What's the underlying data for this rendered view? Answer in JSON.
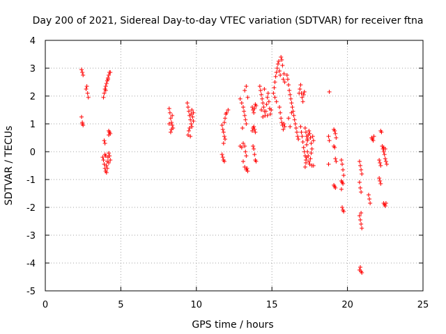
{
  "chart_data": {
    "type": "scatter",
    "title": "Day 200 of 2021, Sidereal Day-to-day VTEC variation (SDTVAR) for receiver ftna",
    "xlabel": "GPS time / hours",
    "ylabel": "SDTVAR / TECUs",
    "xlim": [
      0,
      25
    ],
    "ylim": [
      -5,
      4
    ],
    "xticks": [
      "0",
      "5",
      "10",
      "15",
      "20",
      "25"
    ],
    "yticks": [
      "4",
      "3",
      "2",
      "1",
      "0",
      "-1",
      "-2",
      "-3",
      "-4",
      "-5"
    ],
    "grid": true,
    "marker": "+",
    "color": "#ff0000",
    "series": [
      {
        "name": "SDTVAR",
        "points": [
          [
            2.4,
            2.95
          ],
          [
            2.45,
            2.85
          ],
          [
            2.5,
            2.75
          ],
          [
            2.4,
            1.25
          ],
          [
            2.45,
            1.05
          ],
          [
            2.5,
            0.95
          ],
          [
            2.45,
            1.0
          ],
          [
            2.75,
            2.35
          ],
          [
            2.8,
            2.1
          ],
          [
            2.85,
            1.95
          ],
          [
            2.7,
            2.25
          ],
          [
            3.85,
            1.95
          ],
          [
            3.9,
            2.1
          ],
          [
            3.95,
            2.25
          ],
          [
            4.0,
            2.35
          ],
          [
            4.05,
            2.45
          ],
          [
            4.1,
            2.55
          ],
          [
            4.15,
            2.65
          ],
          [
            4.2,
            2.75
          ],
          [
            4.25,
            2.85
          ],
          [
            4.3,
            2.85
          ],
          [
            4.0,
            2.2
          ],
          [
            4.15,
            2.6
          ],
          [
            3.9,
            0.4
          ],
          [
            3.95,
            0.3
          ],
          [
            4.2,
            0.75
          ],
          [
            4.25,
            0.7
          ],
          [
            4.3,
            0.65
          ],
          [
            4.2,
            0.6
          ],
          [
            3.8,
            -0.2
          ],
          [
            3.85,
            -0.3
          ],
          [
            3.9,
            -0.45
          ],
          [
            3.95,
            -0.6
          ],
          [
            4.0,
            -0.7
          ],
          [
            4.05,
            -0.5
          ],
          [
            4.1,
            -0.35
          ],
          [
            4.15,
            -0.2
          ],
          [
            4.2,
            -0.05
          ],
          [
            4.25,
            -0.15
          ],
          [
            4.3,
            -0.3
          ],
          [
            4.0,
            -0.15
          ],
          [
            4.1,
            -0.6
          ],
          [
            3.95,
            -0.1
          ],
          [
            4.2,
            -0.4
          ],
          [
            4.05,
            -0.75
          ],
          [
            8.2,
            1.55
          ],
          [
            8.25,
            1.4
          ],
          [
            8.3,
            1.2
          ],
          [
            8.35,
            1.05
          ],
          [
            8.4,
            0.95
          ],
          [
            8.45,
            0.85
          ],
          [
            8.3,
            0.7
          ],
          [
            8.2,
            1.0
          ],
          [
            8.4,
            1.3
          ],
          [
            8.35,
            0.8
          ],
          [
            9.4,
            1.75
          ],
          [
            9.45,
            1.6
          ],
          [
            9.5,
            1.45
          ],
          [
            9.55,
            1.3
          ],
          [
            9.6,
            1.15
          ],
          [
            9.65,
            1.0
          ],
          [
            9.7,
            0.9
          ],
          [
            9.75,
            1.25
          ],
          [
            9.8,
            1.4
          ],
          [
            9.5,
            0.75
          ],
          [
            9.45,
            0.6
          ],
          [
            9.6,
            0.55
          ],
          [
            9.7,
            1.5
          ],
          [
            9.8,
            1.1
          ],
          [
            9.55,
            0.85
          ],
          [
            9.65,
            1.35
          ],
          [
            11.7,
            0.95
          ],
          [
            11.75,
            0.8
          ],
          [
            11.8,
            0.7
          ],
          [
            11.85,
            0.55
          ],
          [
            11.9,
            0.45
          ],
          [
            11.8,
            0.3
          ],
          [
            11.85,
            1.05
          ],
          [
            11.9,
            1.2
          ],
          [
            11.95,
            1.35
          ],
          [
            12.0,
            1.4
          ],
          [
            12.1,
            1.5
          ],
          [
            11.7,
            -0.1
          ],
          [
            11.75,
            -0.2
          ],
          [
            11.8,
            -0.3
          ],
          [
            11.85,
            -0.35
          ],
          [
            12.9,
            1.9
          ],
          [
            13.0,
            1.75
          ],
          [
            13.1,
            1.6
          ],
          [
            13.15,
            1.45
          ],
          [
            13.2,
            1.3
          ],
          [
            13.25,
            1.15
          ],
          [
            13.3,
            1.0
          ],
          [
            13.05,
            0.85
          ],
          [
            13.2,
            2.2
          ],
          [
            13.3,
            2.35
          ],
          [
            13.4,
            1.95
          ],
          [
            12.9,
            0.2
          ],
          [
            13.0,
            0.15
          ],
          [
            13.1,
            0.3
          ],
          [
            13.2,
            0.2
          ],
          [
            13.25,
            0.0
          ],
          [
            13.3,
            -0.15
          ],
          [
            13.1,
            -0.35
          ],
          [
            13.2,
            -0.55
          ],
          [
            13.3,
            -0.65
          ],
          [
            13.4,
            -0.7
          ],
          [
            13.35,
            -0.6
          ],
          [
            13.7,
            1.6
          ],
          [
            13.75,
            1.5
          ],
          [
            13.8,
            1.4
          ],
          [
            13.85,
            1.55
          ],
          [
            13.9,
            1.7
          ],
          [
            13.95,
            1.65
          ],
          [
            13.7,
            0.75
          ],
          [
            13.75,
            0.85
          ],
          [
            13.8,
            0.9
          ],
          [
            13.85,
            0.8
          ],
          [
            13.9,
            0.7
          ],
          [
            13.75,
            0.2
          ],
          [
            13.8,
            0.1
          ],
          [
            13.85,
            -0.1
          ],
          [
            13.9,
            -0.3
          ],
          [
            13.95,
            -0.35
          ],
          [
            14.2,
            2.35
          ],
          [
            14.25,
            2.2
          ],
          [
            14.3,
            2.05
          ],
          [
            14.35,
            1.9
          ],
          [
            14.4,
            1.75
          ],
          [
            14.45,
            1.6
          ],
          [
            14.5,
            1.45
          ],
          [
            14.55,
            1.3
          ],
          [
            14.6,
            1.45
          ],
          [
            14.65,
            1.7
          ],
          [
            14.7,
            1.95
          ],
          [
            14.75,
            2.1
          ],
          [
            14.8,
            1.8
          ],
          [
            14.85,
            1.55
          ],
          [
            14.9,
            1.35
          ],
          [
            14.95,
            1.5
          ],
          [
            14.3,
            1.5
          ],
          [
            14.4,
            1.25
          ],
          [
            14.5,
            2.25
          ],
          [
            14.7,
            1.3
          ],
          [
            15.1,
            2.1
          ],
          [
            15.15,
            2.3
          ],
          [
            15.2,
            2.5
          ],
          [
            15.25,
            2.7
          ],
          [
            15.3,
            2.85
          ],
          [
            15.35,
            3.0
          ],
          [
            15.4,
            3.15
          ],
          [
            15.45,
            3.25
          ],
          [
            15.5,
            2.9
          ],
          [
            15.55,
            2.75
          ],
          [
            15.6,
            3.4
          ],
          [
            15.65,
            3.3
          ],
          [
            15.7,
            3.1
          ],
          [
            15.75,
            2.6
          ],
          [
            15.8,
            2.8
          ],
          [
            15.85,
            2.5
          ],
          [
            15.2,
            1.95
          ],
          [
            15.3,
            1.8
          ],
          [
            15.5,
            1.6
          ],
          [
            15.55,
            1.4
          ],
          [
            15.6,
            1.2
          ],
          [
            15.65,
            1.05
          ],
          [
            15.7,
            0.95
          ],
          [
            15.75,
            0.8
          ],
          [
            15.8,
            1.0
          ],
          [
            15.85,
            0.9
          ],
          [
            16.0,
            2.75
          ],
          [
            16.05,
            2.6
          ],
          [
            16.1,
            2.4
          ],
          [
            16.15,
            2.2
          ],
          [
            16.2,
            2.05
          ],
          [
            16.25,
            1.9
          ],
          [
            16.3,
            1.75
          ],
          [
            16.35,
            1.6
          ],
          [
            16.4,
            1.45
          ],
          [
            16.45,
            1.3
          ],
          [
            16.5,
            1.15
          ],
          [
            16.55,
            1.0
          ],
          [
            16.6,
            0.85
          ],
          [
            16.65,
            0.7
          ],
          [
            16.7,
            0.55
          ],
          [
            16.75,
            0.45
          ],
          [
            16.1,
            1.2
          ],
          [
            16.2,
            0.9
          ],
          [
            16.3,
            1.4
          ],
          [
            16.8,
            2.1
          ],
          [
            16.85,
            2.25
          ],
          [
            16.9,
            2.4
          ],
          [
            16.95,
            2.1
          ],
          [
            17.0,
            1.95
          ],
          [
            17.05,
            1.8
          ],
          [
            17.1,
            2.05
          ],
          [
            17.15,
            2.15
          ],
          [
            16.9,
            0.9
          ],
          [
            16.95,
            0.7
          ],
          [
            17.0,
            0.55
          ],
          [
            17.05,
            0.35
          ],
          [
            17.1,
            0.15
          ],
          [
            17.15,
            0.0
          ],
          [
            17.2,
            -0.15
          ],
          [
            17.25,
            -0.3
          ],
          [
            17.3,
            0.25
          ],
          [
            17.35,
            0.4
          ],
          [
            17.2,
            0.85
          ],
          [
            17.25,
            0.7
          ],
          [
            17.3,
            0.55
          ],
          [
            17.35,
            0.45
          ],
          [
            17.4,
            0.6
          ],
          [
            17.45,
            0.75
          ],
          [
            17.5,
            0.65
          ],
          [
            17.55,
            0.5
          ],
          [
            17.6,
            0.3
          ],
          [
            17.65,
            0.1
          ],
          [
            17.7,
            0.55
          ],
          [
            17.75,
            0.4
          ],
          [
            17.2,
            -0.55
          ],
          [
            17.25,
            -0.4
          ],
          [
            17.3,
            -0.2
          ],
          [
            17.35,
            0.0
          ],
          [
            17.4,
            -0.15
          ],
          [
            17.45,
            -0.35
          ],
          [
            17.5,
            -0.45
          ],
          [
            17.55,
            -0.25
          ],
          [
            17.6,
            -0.05
          ],
          [
            17.65,
            -0.5
          ],
          [
            17.75,
            -0.5
          ],
          [
            18.8,
            2.15
          ],
          [
            18.75,
            0.55
          ],
          [
            18.8,
            0.4
          ],
          [
            18.75,
            -0.45
          ],
          [
            19.1,
            0.8
          ],
          [
            19.15,
            0.75
          ],
          [
            19.2,
            0.65
          ],
          [
            19.25,
            0.5
          ],
          [
            19.1,
            0.2
          ],
          [
            19.15,
            0.15
          ],
          [
            19.2,
            -0.25
          ],
          [
            19.25,
            -0.35
          ],
          [
            19.1,
            -1.2
          ],
          [
            19.15,
            -1.25
          ],
          [
            19.2,
            -1.3
          ],
          [
            19.6,
            -0.3
          ],
          [
            19.65,
            -0.45
          ],
          [
            19.7,
            -0.65
          ],
          [
            19.75,
            -0.85
          ],
          [
            19.6,
            -1.05
          ],
          [
            19.65,
            -1.1
          ],
          [
            19.7,
            -1.15
          ],
          [
            19.6,
            -1.35
          ],
          [
            19.65,
            -2.0
          ],
          [
            19.7,
            -2.1
          ],
          [
            19.75,
            -2.15
          ],
          [
            20.8,
            -0.35
          ],
          [
            20.85,
            -0.5
          ],
          [
            20.9,
            -0.65
          ],
          [
            20.95,
            -0.8
          ],
          [
            20.8,
            -1.1
          ],
          [
            20.85,
            -1.3
          ],
          [
            20.9,
            -1.45
          ],
          [
            20.8,
            -2.3
          ],
          [
            20.85,
            -2.45
          ],
          [
            20.9,
            -2.6
          ],
          [
            20.95,
            -2.75
          ],
          [
            20.9,
            -2.2
          ],
          [
            20.85,
            -4.15
          ],
          [
            20.9,
            -4.3
          ],
          [
            20.95,
            -4.35
          ],
          [
            20.8,
            -4.25
          ],
          [
            21.4,
            -1.55
          ],
          [
            21.45,
            -1.7
          ],
          [
            21.5,
            -1.85
          ],
          [
            21.6,
            0.5
          ],
          [
            21.65,
            0.45
          ],
          [
            21.7,
            0.4
          ],
          [
            21.75,
            0.55
          ],
          [
            22.1,
            -0.3
          ],
          [
            22.15,
            -0.4
          ],
          [
            22.2,
            -0.5
          ],
          [
            22.1,
            -0.95
          ],
          [
            22.15,
            -1.05
          ],
          [
            22.2,
            -1.15
          ],
          [
            22.2,
            0.75
          ],
          [
            22.25,
            0.7
          ],
          [
            22.3,
            0.2
          ],
          [
            22.35,
            0.1
          ],
          [
            22.4,
            0.0
          ],
          [
            22.45,
            -0.1
          ],
          [
            22.5,
            -0.25
          ],
          [
            22.55,
            -0.35
          ],
          [
            22.6,
            -0.45
          ],
          [
            22.4,
            0.15
          ],
          [
            22.5,
            0.1
          ],
          [
            22.4,
            -1.85
          ],
          [
            22.45,
            -1.9
          ],
          [
            22.5,
            -1.95
          ],
          [
            22.55,
            -1.85
          ]
        ]
      }
    ]
  }
}
